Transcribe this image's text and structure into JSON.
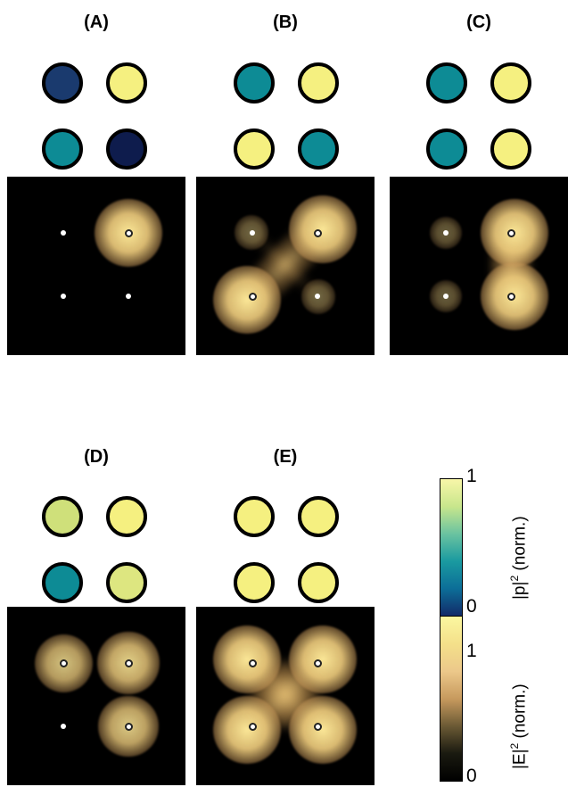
{
  "panels": [
    {
      "id": "A",
      "label": "(A)",
      "dots": [
        "#1a3a6e",
        "#f5f080",
        "#0d8b95",
        "#0e1c4d"
      ],
      "markers": [
        false,
        true,
        false,
        false
      ],
      "intensity": [
        0,
        1,
        0,
        0
      ],
      "bridge": "none"
    },
    {
      "id": "B",
      "label": "(B)",
      "dots": [
        "#0d8b95",
        "#f5f080",
        "#f5f080",
        "#0d8b95"
      ],
      "markers": [
        false,
        true,
        true,
        false
      ],
      "intensity": [
        0.15,
        1,
        1,
        0.15
      ],
      "bridge": "diag"
    },
    {
      "id": "C",
      "label": "(C)",
      "dots": [
        "#0d8b95",
        "#f5f080",
        "#0d8b95",
        "#f5f080"
      ],
      "markers": [
        false,
        true,
        false,
        true
      ],
      "intensity": [
        0.1,
        1,
        0.1,
        1
      ],
      "bridge": "right"
    },
    {
      "id": "D",
      "label": "(D)",
      "dots": [
        "#cfe07a",
        "#f5f080",
        "#0d8b95",
        "#dde680"
      ],
      "markers": [
        true,
        true,
        false,
        true
      ],
      "intensity": [
        0.75,
        0.85,
        0,
        0.8
      ],
      "bridge": "none"
    },
    {
      "id": "E",
      "label": "(E)",
      "dots": [
        "#f5f080",
        "#f5f080",
        "#f5f080",
        "#f5f080"
      ],
      "markers": [
        true,
        true,
        true,
        true
      ],
      "intensity": [
        1,
        1,
        1,
        1
      ],
      "bridge": "x"
    }
  ],
  "colorbars": [
    {
      "id": "p",
      "label_main": "|p|",
      "label_sup": "2",
      "label_suffix": " (norm.)",
      "tick_max": "1",
      "tick_min": "0",
      "stops": [
        "#f8f6a8",
        "#c8e68c",
        "#6ac3a0",
        "#1a9aa0",
        "#0c6e98",
        "#122a68",
        "#080c30"
      ]
    },
    {
      "id": "E",
      "label_main": "|E|",
      "label_sup": "2",
      "label_suffix": " (norm.)",
      "tick_max": "1",
      "tick_min": "0",
      "stops": [
        "#fbf7a0",
        "#f4e08a",
        "#ecc88a",
        "#c79a5e",
        "#6b5a35",
        "#1a1a10",
        "#000000"
      ]
    }
  ]
}
